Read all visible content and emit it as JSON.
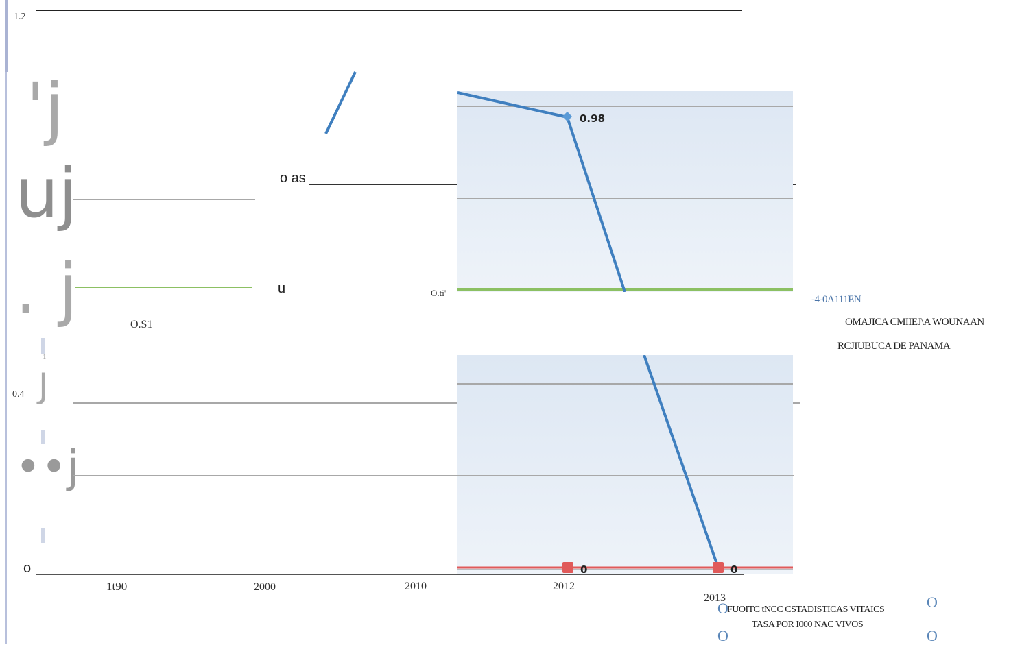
{
  "chart_data": {
    "type": "line",
    "categories": [
      "2012",
      "2013"
    ],
    "series": [
      {
        "values": [
          0.98,
          0
        ]
      },
      {
        "values": [
          0.6,
          0.6
        ]
      },
      {
        "values": [
          0,
          0
        ]
      }
    ],
    "data_labels": {
      "blue_2012": "0.98",
      "red_2012": "0",
      "red_2013": "0"
    },
    "colors": {
      "blue": "#3f7fbf",
      "green": "#8cc063",
      "red": "#e05a5a",
      "grid": "#a8a8a8"
    },
    "y_ticks": [
      "1.2",
      "0.4",
      "o"
    ],
    "x_ticks": [
      "1t90",
      "2000",
      "2010",
      "2012",
      "2013"
    ],
    "stray_labels": {
      "oas": "o as",
      "u": "u",
      "oti": "O.ti'",
      "os1": "O.S1",
      "one": "1"
    },
    "glyphs": {
      "g1": "'j",
      "g2": "uj",
      "g3": ". j",
      "g4": "J",
      "g5": "••j"
    },
    "legend": {
      "line1": "-4-0A111EN",
      "line2": "OMAJICA CMIIEJ\\A WOUNAAN",
      "line3": "RCJIUBUCA DE PANAMA"
    },
    "footer": {
      "source": "FUOITC tNCC CSTADISTICAS VITAICS",
      "unit": "TASA POR I000 NAC VIVOS",
      "o_mark": "O"
    }
  }
}
